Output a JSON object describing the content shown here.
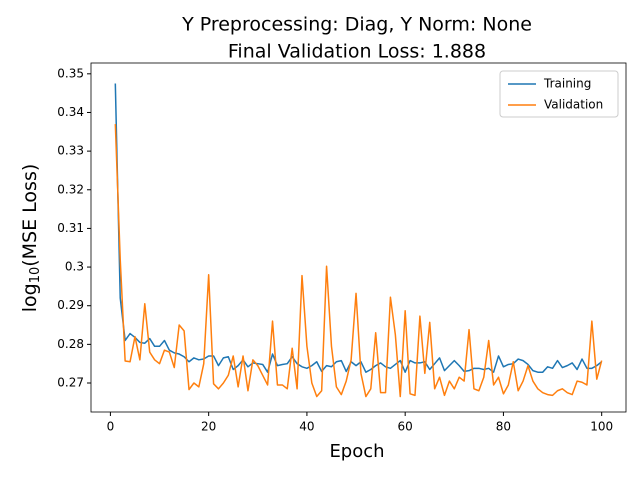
{
  "chart_data": {
    "type": "line",
    "title": [
      "Y Preprocessing: Diag, Y Norm: None",
      "Final Validation Loss: 1.888"
    ],
    "xlabel": "Epoch",
    "ylabel": {
      "base": "log",
      "subscript": "10",
      "rest": "(MSE Loss)"
    },
    "x": [
      1,
      2,
      3,
      4,
      5,
      6,
      7,
      8,
      9,
      10,
      11,
      12,
      13,
      14,
      15,
      16,
      17,
      18,
      19,
      20,
      21,
      22,
      23,
      24,
      25,
      26,
      27,
      28,
      29,
      30,
      31,
      32,
      33,
      34,
      35,
      36,
      37,
      38,
      39,
      40,
      41,
      42,
      43,
      44,
      45,
      46,
      47,
      48,
      49,
      50,
      51,
      52,
      53,
      54,
      55,
      56,
      57,
      58,
      59,
      60,
      61,
      62,
      63,
      64,
      65,
      66,
      67,
      68,
      69,
      70,
      71,
      72,
      73,
      74,
      75,
      76,
      77,
      78,
      79,
      80,
      81,
      82,
      83,
      84,
      85,
      86,
      87,
      88,
      89,
      90,
      91,
      92,
      93,
      94,
      95,
      96,
      97,
      98,
      99,
      100
    ],
    "series": [
      {
        "name": "Training",
        "color": "#1f77b4",
        "values": [
          0.3475,
          0.292,
          0.281,
          0.2828,
          0.2818,
          0.2805,
          0.2803,
          0.2815,
          0.2795,
          0.2795,
          0.281,
          0.2785,
          0.2778,
          0.2775,
          0.2768,
          0.2755,
          0.2765,
          0.276,
          0.2762,
          0.277,
          0.277,
          0.2745,
          0.2765,
          0.2768,
          0.2735,
          0.2745,
          0.276,
          0.2742,
          0.2752,
          0.275,
          0.2748,
          0.2728,
          0.2775,
          0.2745,
          0.2748,
          0.275,
          0.2768,
          0.275,
          0.2742,
          0.2738,
          0.2745,
          0.2755,
          0.273,
          0.2745,
          0.2742,
          0.2755,
          0.2758,
          0.273,
          0.2755,
          0.2745,
          0.2755,
          0.2728,
          0.2735,
          0.2745,
          0.2752,
          0.2742,
          0.2738,
          0.2748,
          0.2758,
          0.2728,
          0.2758,
          0.2752,
          0.2752,
          0.2755,
          0.2735,
          0.275,
          0.2765,
          0.2732,
          0.2745,
          0.2758,
          0.2745,
          0.273,
          0.2732,
          0.2738,
          0.2738,
          0.2735,
          0.2738,
          0.2728,
          0.277,
          0.2742,
          0.2748,
          0.275,
          0.2762,
          0.2758,
          0.2748,
          0.2732,
          0.2728,
          0.2728,
          0.2742,
          0.2738,
          0.2758,
          0.274,
          0.2745,
          0.2752,
          0.2735,
          0.2762,
          0.2738,
          0.2738,
          0.2745,
          0.2755
        ]
      },
      {
        "name": "Validation",
        "color": "#ff7f0e",
        "values": [
          0.337,
          0.302,
          0.2757,
          0.2755,
          0.282,
          0.276,
          0.2905,
          0.278,
          0.276,
          0.275,
          0.2785,
          0.278,
          0.274,
          0.285,
          0.2835,
          0.2683,
          0.27,
          0.269,
          0.275,
          0.298,
          0.2698,
          0.2685,
          0.27,
          0.272,
          0.277,
          0.269,
          0.277,
          0.268,
          0.276,
          0.2745,
          0.272,
          0.2695,
          0.286,
          0.2695,
          0.2695,
          0.2685,
          0.279,
          0.2685,
          0.2978,
          0.2795,
          0.27,
          0.2665,
          0.268,
          0.3002,
          0.2795,
          0.269,
          0.267,
          0.2705,
          0.276,
          0.2932,
          0.2725,
          0.2665,
          0.2685,
          0.283,
          0.2675,
          0.2675,
          0.2922,
          0.2825,
          0.2665,
          0.2887,
          0.2672,
          0.2668,
          0.2873,
          0.2725,
          0.2857,
          0.2685,
          0.2715,
          0.2668,
          0.2705,
          0.2685,
          0.2715,
          0.2705,
          0.2838,
          0.2685,
          0.268,
          0.2715,
          0.281,
          0.2695,
          0.2715,
          0.2672,
          0.2695,
          0.2755,
          0.268,
          0.2705,
          0.2745,
          0.2705,
          0.2685,
          0.2675,
          0.267,
          0.2668,
          0.268,
          0.2685,
          0.2675,
          0.267,
          0.2705,
          0.2702,
          0.2695,
          0.286,
          0.271,
          0.2758
        ]
      }
    ],
    "xlim": [
      -3.95,
      104.95
    ],
    "xticks": [
      0,
      20,
      40,
      60,
      80,
      100
    ],
    "ylim": [
      0.2625,
      0.3528
    ],
    "yticks": [
      0.27,
      0.28,
      0.29,
      0.3,
      0.31,
      0.32,
      0.33,
      0.34,
      0.35
    ],
    "legend": "upper right"
  }
}
